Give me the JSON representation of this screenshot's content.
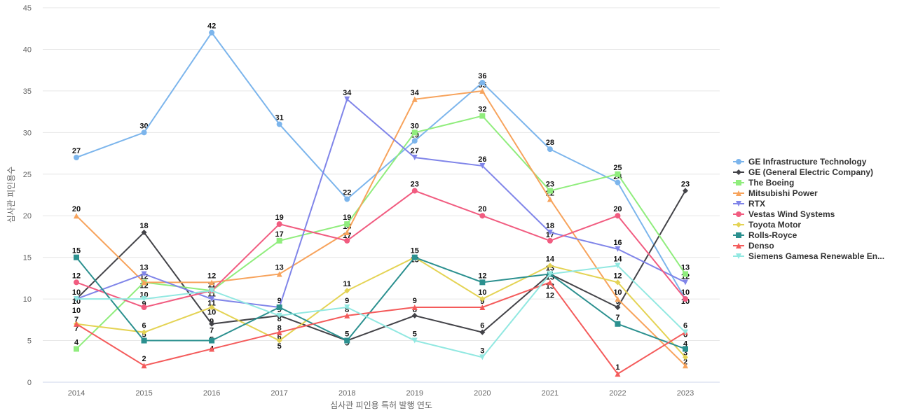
{
  "chart_data": {
    "type": "line",
    "xlabel": "심사관 피인용 특허 발행 연도",
    "ylabel": "심사관 피인용수",
    "ylim": [
      0,
      45
    ],
    "yticks": [
      0,
      5,
      10,
      15,
      20,
      25,
      30,
      35,
      40,
      45
    ],
    "categories": [
      "2014",
      "2015",
      "2016",
      "2017",
      "2018",
      "2019",
      "2020",
      "2021",
      "2022",
      "2023"
    ],
    "grid": true,
    "legend_position": "right",
    "series": [
      {
        "name": "GE Infrastructure Technology",
        "color": "#7cb5ec",
        "marker": "circle",
        "values": [
          27,
          30,
          42,
          31,
          22,
          29,
          36,
          28,
          24,
          10
        ]
      },
      {
        "name": "GE (General Electric Company)",
        "color": "#434348",
        "marker": "diamond",
        "values": [
          10,
          18,
          7,
          8,
          5,
          8,
          6,
          13,
          9,
          23
        ]
      },
      {
        "name": "The Boeing",
        "color": "#90ed7d",
        "marker": "square",
        "values": [
          4,
          12,
          11,
          17,
          19,
          30,
          32,
          23,
          25,
          13
        ]
      },
      {
        "name": "Mitsubishi Power",
        "color": "#f7a35c",
        "marker": "triangle",
        "values": [
          20,
          12,
          12,
          13,
          18,
          34,
          35,
          22,
          10,
          2
        ]
      },
      {
        "name": "RTX",
        "color": "#8085e9",
        "marker": "triangle-down",
        "values": [
          10,
          13,
          10,
          9,
          34,
          27,
          26,
          18,
          16,
          12
        ]
      },
      {
        "name": "Vestas Wind Systems",
        "color": "#f15c80",
        "marker": "circle",
        "values": [
          12,
          9,
          11,
          19,
          17,
          23,
          20,
          17,
          20,
          10
        ]
      },
      {
        "name": "Toyota Motor",
        "color": "#e4d354",
        "marker": "diamond",
        "values": [
          7,
          6,
          9,
          5,
          11,
          15,
          10,
          14,
          12,
          3
        ]
      },
      {
        "name": "Rolls-Royce",
        "color": "#2b908f",
        "marker": "square",
        "values": [
          15,
          5,
          5,
          9,
          5,
          15,
          12,
          13,
          7,
          4
        ]
      },
      {
        "name": "Denso",
        "color": "#f45b5b",
        "marker": "triangle",
        "values": [
          7,
          2,
          4,
          6,
          8,
          9,
          9,
          12,
          1,
          6
        ]
      },
      {
        "name": "Siemens Gamesa Renewable En...",
        "color": "#91e8e1",
        "marker": "triangle-down",
        "values": [
          10,
          10,
          11,
          8,
          9,
          5,
          3,
          13,
          14,
          6
        ]
      }
    ]
  }
}
